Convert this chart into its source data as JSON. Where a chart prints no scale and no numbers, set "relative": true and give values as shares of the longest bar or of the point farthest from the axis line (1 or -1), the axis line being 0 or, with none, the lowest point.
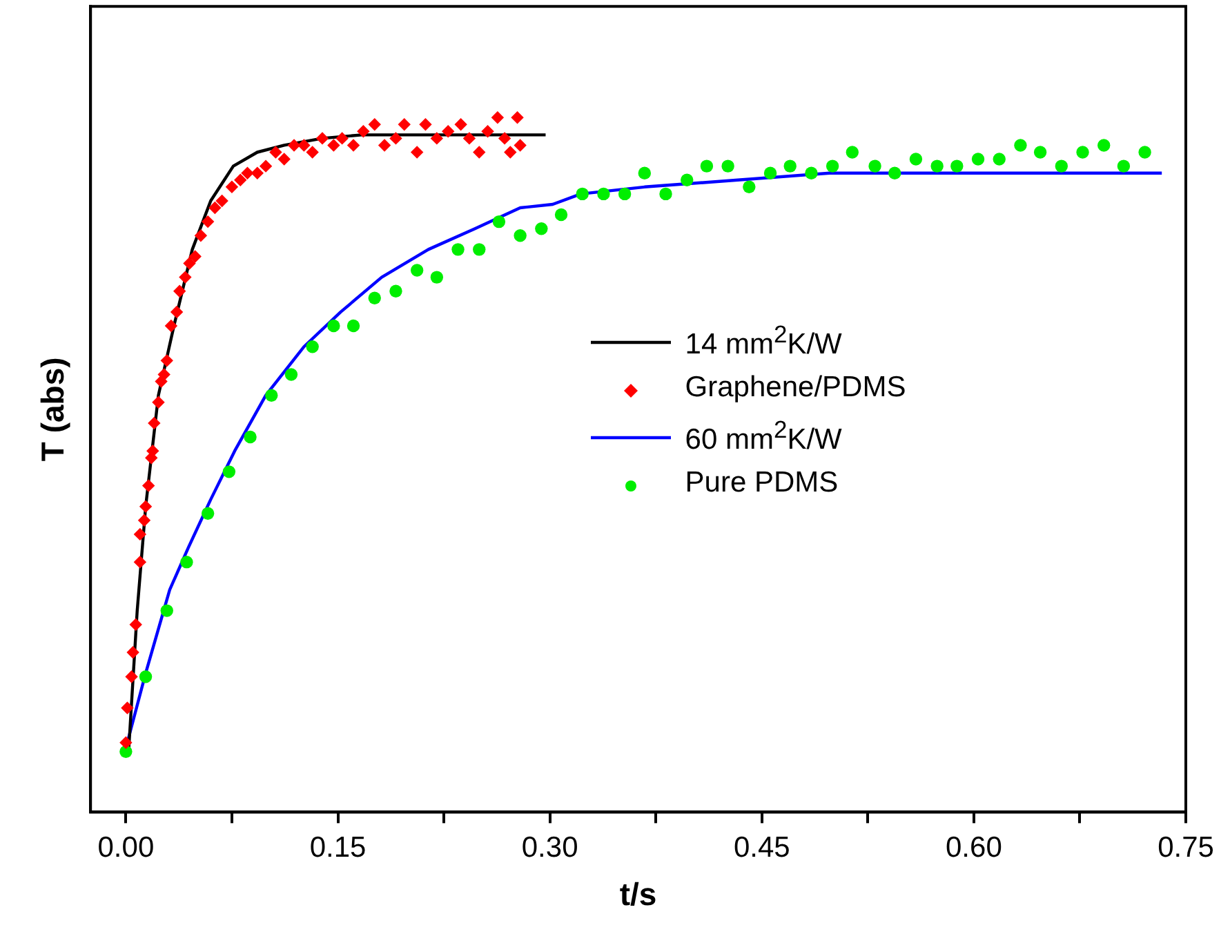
{
  "chart_data": {
    "type": "scatter",
    "xlabel": "t/s",
    "ylabel": "T (abs)",
    "relative": true,
    "legend": "center",
    "grid": false,
    "xlim": [
      -0.025,
      0.75
    ],
    "xticks": [
      {
        "value": 0,
        "label": "0.00"
      },
      {
        "value": 0.075,
        "label": null
      },
      {
        "value": 0.15,
        "label": "0.15"
      },
      {
        "value": 0.225,
        "label": null
      },
      {
        "value": 0.3,
        "label": "0.30"
      },
      {
        "value": 0.375,
        "label": null
      },
      {
        "value": 0.45,
        "label": "0.45"
      },
      {
        "value": 0.525,
        "label": null
      },
      {
        "value": 0.6,
        "label": "0.60"
      },
      {
        "value": 0.675,
        "label": null
      },
      {
        "value": 0.75,
        "label": "0.75"
      }
    ],
    "series": [
      {
        "name": "14 mm$^{2}$K/W",
        "type": "line",
        "marker": "none",
        "color": "#000000",
        "x": [
          0.002,
          0.008,
          0.014,
          0.023,
          0.034,
          0.047,
          0.06,
          0.076,
          0.093,
          0.112,
          0.139,
          0.167,
          0.297
        ],
        "values": [
          0.09,
          0.29,
          0.44,
          0.6,
          0.7,
          0.81,
          0.88,
          0.93,
          0.95,
          0.96,
          0.97,
          0.975,
          0.975
        ]
      },
      {
        "name": "Graphene/PDMS",
        "type": "scatter",
        "marker": "diamond",
        "color": "#ff0000",
        "x": [
          0,
          0.001,
          0.004,
          0.005,
          0.007,
          0.01,
          0.01,
          0.013,
          0.014,
          0.016,
          0.018,
          0.019,
          0.02,
          0.023,
          0.025,
          0.027,
          0.029,
          0.032,
          0.036,
          0.038,
          0.042,
          0.045,
          0.049,
          0.053,
          0.058,
          0.063,
          0.068,
          0.075,
          0.081,
          0.086,
          0.093,
          0.099,
          0.106,
          0.112,
          0.119,
          0.126,
          0.132,
          0.139,
          0.147,
          0.153,
          0.161,
          0.168,
          0.176,
          0.183,
          0.191,
          0.197,
          0.206,
          0.212,
          0.22,
          0.228,
          0.237,
          0.243,
          0.25,
          0.256,
          0.263,
          0.268,
          0.272,
          0.277,
          0.279
        ],
        "values": [
          0.1,
          0.15,
          0.195,
          0.23,
          0.27,
          0.36,
          0.4,
          0.42,
          0.44,
          0.47,
          0.51,
          0.52,
          0.56,
          0.59,
          0.62,
          0.63,
          0.65,
          0.7,
          0.72,
          0.75,
          0.77,
          0.79,
          0.8,
          0.83,
          0.85,
          0.87,
          0.88,
          0.9,
          0.91,
          0.92,
          0.92,
          0.93,
          0.95,
          0.94,
          0.96,
          0.96,
          0.95,
          0.97,
          0.96,
          0.97,
          0.96,
          0.98,
          0.99,
          0.96,
          0.97,
          0.99,
          0.95,
          0.99,
          0.97,
          0.98,
          0.99,
          0.97,
          0.95,
          0.98,
          1.0,
          0.97,
          0.95,
          1.0,
          0.96
        ]
      },
      {
        "name": "60 mm$^{2}$K/W",
        "type": "line",
        "marker": "none",
        "color": "#0000ff",
        "x": [
          0.001,
          0.014,
          0.031,
          0.044,
          0.06,
          0.077,
          0.099,
          0.126,
          0.152,
          0.181,
          0.214,
          0.247,
          0.279,
          0.302,
          0.322,
          0.367,
          0.433,
          0.498,
          0.563,
          0.629,
          0.733
        ],
        "values": [
          0.1,
          0.2,
          0.32,
          0.38,
          0.45,
          0.52,
          0.6,
          0.67,
          0.72,
          0.77,
          0.81,
          0.84,
          0.87,
          0.875,
          0.89,
          0.9,
          0.91,
          0.92,
          0.92,
          0.92,
          0.92
        ]
      },
      {
        "name": "Pure PDMS",
        "type": "scatter",
        "marker": "circle",
        "color": "#00ee00",
        "x": [
          0,
          0.014,
          0.029,
          0.043,
          0.058,
          0.073,
          0.088,
          0.103,
          0.117,
          0.132,
          0.147,
          0.161,
          0.176,
          0.191,
          0.206,
          0.22,
          0.235,
          0.25,
          0.264,
          0.279,
          0.294,
          0.308,
          0.323,
          0.338,
          0.353,
          0.367,
          0.382,
          0.397,
          0.411,
          0.426,
          0.441,
          0.456,
          0.47,
          0.485,
          0.5,
          0.514,
          0.53,
          0.544,
          0.559,
          0.574,
          0.588,
          0.603,
          0.618,
          0.633,
          0.647,
          0.662,
          0.677,
          0.692,
          0.706,
          0.721
        ],
        "values": [
          0.087,
          0.195,
          0.29,
          0.36,
          0.43,
          0.49,
          0.54,
          0.6,
          0.63,
          0.67,
          0.7,
          0.7,
          0.74,
          0.75,
          0.78,
          0.77,
          0.81,
          0.81,
          0.85,
          0.83,
          0.84,
          0.86,
          0.89,
          0.89,
          0.89,
          0.92,
          0.89,
          0.91,
          0.93,
          0.93,
          0.9,
          0.92,
          0.93,
          0.92,
          0.93,
          0.95,
          0.93,
          0.92,
          0.94,
          0.93,
          0.93,
          0.94,
          0.94,
          0.96,
          0.95,
          0.93,
          0.95,
          0.96,
          0.93,
          0.95
        ]
      }
    ]
  }
}
